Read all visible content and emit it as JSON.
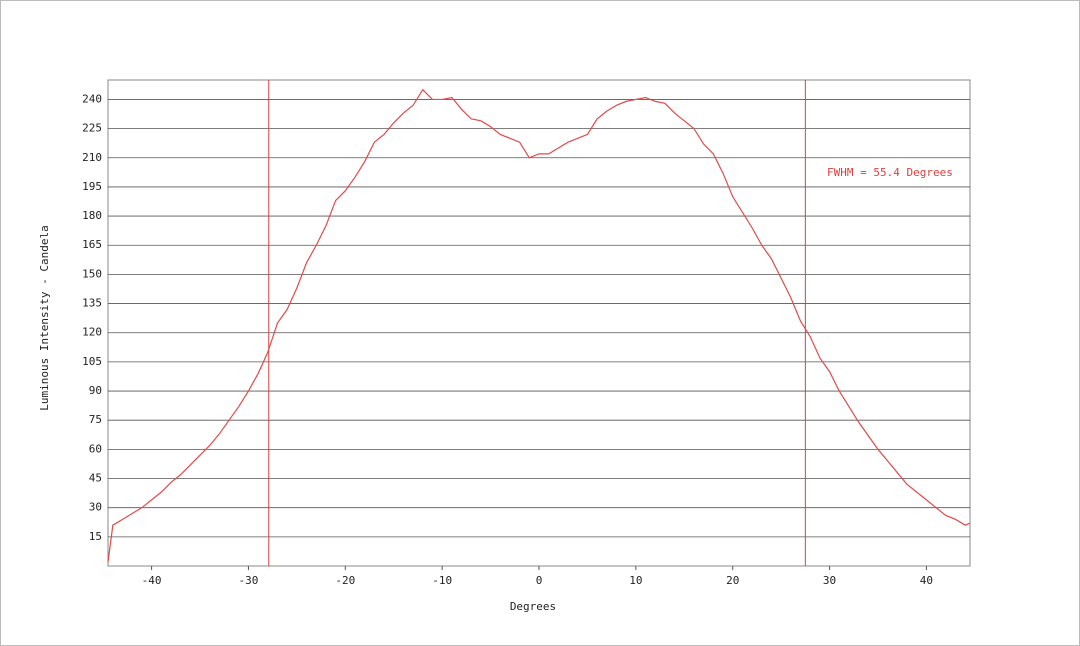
{
  "chart_data": {
    "type": "line",
    "x_label": "Degrees",
    "y_label": "Luminous Intensity - Candela",
    "annotation": "FWHM = 55.4 Degrees",
    "x": [
      -44.5,
      -44,
      -43,
      -42,
      -41,
      -40,
      -39,
      -38,
      -37,
      -36,
      -35,
      -34,
      -33,
      -32,
      -31,
      -30,
      -29,
      -28,
      -27,
      -26,
      -25,
      -24,
      -23,
      -22,
      -21,
      -20,
      -19,
      -18,
      -17,
      -16,
      -15,
      -14,
      -13,
      -12,
      -11,
      -10,
      -9,
      -8,
      -7,
      -6,
      -5,
      -4,
      -3,
      -2,
      -1,
      0,
      1,
      2,
      3,
      4,
      5,
      6,
      7,
      8,
      9,
      10,
      11,
      12,
      13,
      14,
      15,
      16,
      17,
      18,
      19,
      20,
      21,
      22,
      23,
      24,
      25,
      26,
      27,
      28,
      29,
      30,
      31,
      32,
      33,
      34,
      35,
      36,
      37,
      38,
      39,
      40,
      41,
      42,
      43,
      44,
      44.5
    ],
    "series": [
      {
        "color": "#e04a4a",
        "values": [
          2,
          21,
          24,
          27,
          30,
          34,
          38,
          43,
          47,
          52,
          57,
          62,
          68,
          75,
          82,
          90,
          99,
          110,
          125,
          132,
          143,
          156,
          165,
          175,
          188,
          193,
          200,
          208,
          218,
          222,
          228,
          233,
          237,
          245,
          240,
          240,
          241,
          235,
          230,
          229,
          226,
          222,
          220,
          218,
          210,
          212,
          212,
          215,
          218,
          220,
          222,
          230,
          234,
          237,
          239,
          240,
          241,
          239,
          238,
          233,
          229,
          225,
          217,
          212,
          202,
          190,
          182,
          174,
          165,
          158,
          148,
          138,
          126,
          118,
          107,
          100,
          90,
          82,
          74,
          67,
          60,
          54,
          48,
          42,
          38,
          34,
          30,
          26,
          24,
          21,
          22
        ]
      }
    ],
    "fwhm_lines": [
      -27.9,
      27.5
    ],
    "fwhm_color": "#d94040",
    "xlim": [
      -44.5,
      44.5
    ],
    "ylim": [
      0,
      250
    ],
    "xticks": [
      -40,
      -30,
      -20,
      -10,
      0,
      10,
      20,
      30,
      40
    ],
    "yticks": [
      15,
      30,
      45,
      60,
      75,
      90,
      105,
      120,
      135,
      150,
      165,
      180,
      195,
      210,
      225,
      240
    ],
    "grid": true
  }
}
